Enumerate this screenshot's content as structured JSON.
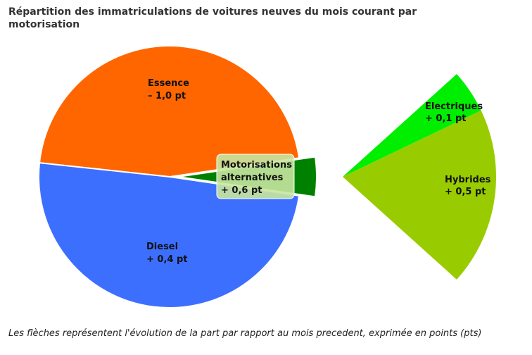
{
  "title": "Répartition des immatriculations de voitures neuves du mois courant par motorisation",
  "footnote": "Les flèches représentent l'évolution de la part par rapport au mois precedent, exprimée en points (pts)",
  "colors": {
    "essence": "#ff6600",
    "diesel": "#3d6fff",
    "alternatives": "#008000",
    "electriques": "#00ee00",
    "hybrides": "#99cc00",
    "label_box": "#c8e6a0"
  },
  "chart_data": [
    {
      "type": "pie",
      "slices": [
        {
          "label": "Essence",
          "change": "– 1,0 pt",
          "value": 46.0
        },
        {
          "label": "Diesel",
          "change": "+ 0,4 pt",
          "value": 49.4
        },
        {
          "label": "Motorisations alternatives",
          "label_line2": "alternatives",
          "label_line1": "Motorisations",
          "change": "+ 0,6 pt",
          "value": 4.6
        }
      ]
    },
    {
      "type": "pie",
      "note": "breakdown of alternative motorisations",
      "slices": [
        {
          "label": "Electriques",
          "change": "+ 0,1 pt",
          "value": 0.9
        },
        {
          "label": "Hybrides",
          "change": "+ 0,5 pt",
          "value": 3.7
        }
      ]
    }
  ]
}
